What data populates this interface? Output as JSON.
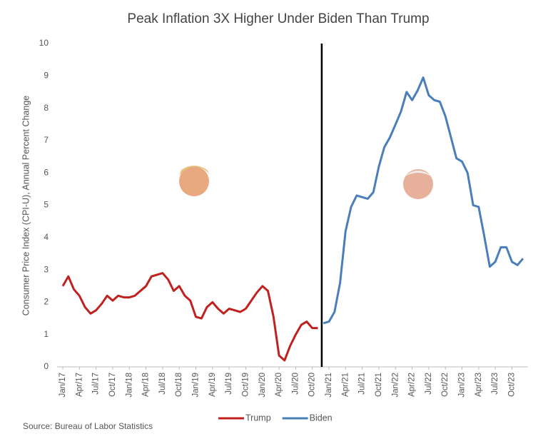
{
  "chart_data": {
    "type": "line",
    "title": "Peak Inflation 3X Higher Under Biden Than Trump",
    "y_label": "Consumer Price Index (CPI-U), Annual Percent Change",
    "source": "Source: Bureau of Labor Statistics",
    "categories": [
      "Jan/17",
      null,
      null,
      "Apr/17",
      null,
      null,
      "Jul/17",
      null,
      null,
      "Oct/17",
      null,
      null,
      "Jan/18",
      null,
      null,
      "Apr/18",
      null,
      null,
      "Jul/18",
      null,
      null,
      "Oct/18",
      null,
      null,
      "Jan/19",
      null,
      null,
      "Apr/19",
      null,
      null,
      "Jul/19",
      null,
      null,
      "Oct/19",
      null,
      null,
      "Jan/20",
      null,
      null,
      "Apr/20",
      null,
      null,
      "Jul/20",
      null,
      null,
      "Oct/20",
      null,
      null,
      "Jan/21",
      null,
      null,
      "Apr/21",
      null,
      null,
      "Jul/21",
      null,
      null,
      "Oct/21",
      null,
      null,
      "Jan/22",
      null,
      null,
      "Apr/22",
      null,
      null,
      "Jul/22",
      null,
      null,
      "Oct/22",
      null,
      null,
      "Jan/23",
      null,
      null,
      "Apr/23",
      null,
      null,
      "Jul/23",
      null,
      null,
      "Oct/23",
      null,
      null
    ],
    "series": [
      {
        "name": "Trump",
        "color": "#c0211f",
        "values": [
          2.5,
          2.8,
          2.4,
          2.2,
          1.85,
          1.65,
          1.75,
          1.95,
          2.2,
          2.05,
          2.2,
          2.15,
          2.15,
          2.2,
          2.35,
          2.5,
          2.8,
          2.85,
          2.9,
          2.7,
          2.35,
          2.5,
          2.2,
          2.05,
          1.55,
          1.5,
          1.85,
          2.0,
          1.8,
          1.65,
          1.8,
          1.75,
          1.7,
          1.8,
          2.05,
          2.3,
          2.5,
          2.35,
          1.55,
          0.35,
          0.2,
          0.65,
          1.0,
          1.3,
          1.4,
          1.2,
          1.2,
          null,
          null,
          null,
          null,
          null,
          null,
          null,
          null,
          null,
          null,
          null,
          null,
          null,
          null,
          null,
          null,
          null,
          null,
          null,
          null,
          null,
          null,
          null,
          null,
          null,
          null,
          null,
          null,
          null,
          null,
          null,
          null,
          null,
          null,
          null,
          null,
          null
        ]
      },
      {
        "name": "Biden",
        "color": "#4a7ebb",
        "values": [
          null,
          null,
          null,
          null,
          null,
          null,
          null,
          null,
          null,
          null,
          null,
          null,
          null,
          null,
          null,
          null,
          null,
          null,
          null,
          null,
          null,
          null,
          null,
          null,
          null,
          null,
          null,
          null,
          null,
          null,
          null,
          null,
          null,
          null,
          null,
          null,
          null,
          null,
          null,
          null,
          null,
          null,
          null,
          null,
          null,
          null,
          null,
          1.35,
          1.4,
          1.7,
          2.6,
          4.2,
          4.95,
          5.3,
          5.25,
          5.2,
          5.4,
          6.2,
          6.8,
          7.1,
          7.5,
          7.9,
          8.5,
          8.25,
          8.55,
          8.95,
          8.4,
          8.25,
          8.2,
          7.75,
          7.1,
          6.45,
          6.35,
          6.0,
          5.0,
          4.95,
          4.05,
          3.1,
          3.25,
          3.7,
          3.7,
          3.25,
          3.15,
          3.35
        ]
      }
    ],
    "ylim": [
      0,
      10
    ],
    "yticks": [
      0,
      1,
      2,
      3,
      4,
      5,
      6,
      7,
      8,
      9,
      10
    ],
    "grid": false
  }
}
